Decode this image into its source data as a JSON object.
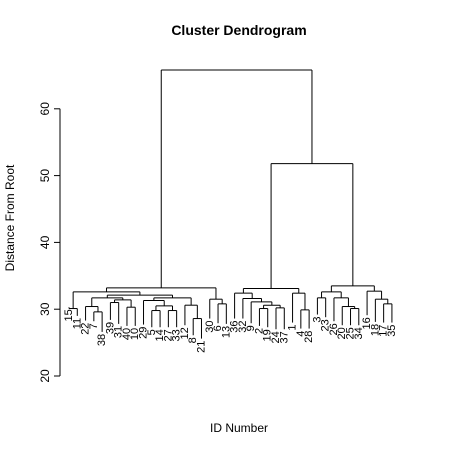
{
  "chart_data": {
    "type": "dendrogram",
    "title": "Cluster Dendrogram",
    "xlabel": "ID Number",
    "ylabel": "Distance From Root",
    "ylim": [
      20,
      68
    ],
    "yticks": [
      20,
      30,
      40,
      50,
      60
    ],
    "leaves": [
      {
        "label": "15",
        "height": 30.3
      },
      {
        "label": "11",
        "height": 29.0
      },
      {
        "label": "22",
        "height": 28.3
      },
      {
        "label": "7",
        "height": 28.2
      },
      {
        "label": "38",
        "height": 26.6
      },
      {
        "label": "39",
        "height": 28.4
      },
      {
        "label": "31",
        "height": 27.8
      },
      {
        "label": "40",
        "height": 27.5
      },
      {
        "label": "10",
        "height": 27.5
      },
      {
        "label": "29",
        "height": 27.7
      },
      {
        "label": "5",
        "height": 27.3
      },
      {
        "label": "14",
        "height": 27.3
      },
      {
        "label": "27",
        "height": 27.3
      },
      {
        "label": "33",
        "height": 27.3
      },
      {
        "label": "12",
        "height": 27.6
      },
      {
        "label": "8",
        "height": 26.1
      },
      {
        "label": "21",
        "height": 25.6
      },
      {
        "label": "30",
        "height": 28.6
      },
      {
        "label": "6",
        "height": 27.9
      },
      {
        "label": "13",
        "height": 27.8
      },
      {
        "label": "36",
        "height": 28.6
      },
      {
        "label": "32",
        "height": 28.6
      },
      {
        "label": "9",
        "height": 27.9
      },
      {
        "label": "2",
        "height": 27.5
      },
      {
        "label": "19",
        "height": 27.3
      },
      {
        "label": "24",
        "height": 27.0
      },
      {
        "label": "37",
        "height": 27.0
      },
      {
        "label": "1",
        "height": 28.0
      },
      {
        "label": "4",
        "height": 27.1
      },
      {
        "label": "28",
        "height": 27.1
      },
      {
        "label": "3",
        "height": 29.2
      },
      {
        "label": "23",
        "height": 28.8
      },
      {
        "label": "26",
        "height": 28.2
      },
      {
        "label": "20",
        "height": 27.6
      },
      {
        "label": "25",
        "height": 27.6
      },
      {
        "label": "34",
        "height": 27.6
      },
      {
        "label": "16",
        "height": 29.1
      },
      {
        "label": "18",
        "height": 28.1
      },
      {
        "label": "17",
        "height": 28.0
      },
      {
        "label": "35",
        "height": 28.0
      }
    ],
    "merges": [
      {
        "a": "L0",
        "b": "L1",
        "height": 30.1
      },
      {
        "a": "L3",
        "b": "L4",
        "height": 29.6
      },
      {
        "a": "L2",
        "b": "M1",
        "height": 30.4
      },
      {
        "a": "L5",
        "b": "L6",
        "height": 31.0
      },
      {
        "a": "L7",
        "b": "L8",
        "height": 30.3
      },
      {
        "a": "M3",
        "b": "M4",
        "height": 31.4
      },
      {
        "a": "M2",
        "b": "M5",
        "height": 31.7
      },
      {
        "a": "L10",
        "b": "L11",
        "height": 29.8
      },
      {
        "a": "L12",
        "b": "L13",
        "height": 29.8
      },
      {
        "a": "M7",
        "b": "M8",
        "height": 30.5
      },
      {
        "a": "L9",
        "b": "M9",
        "height": 31.3
      },
      {
        "a": "L15",
        "b": "L16",
        "height": 28.6
      },
      {
        "a": "L14",
        "b": "M11",
        "height": 30.6
      },
      {
        "a": "M10",
        "b": "M12",
        "height": 31.7
      },
      {
        "a": "M13",
        "b": "M6",
        "height": 32.1
      },
      {
        "a": "M0",
        "b": "M14",
        "height": 32.6
      },
      {
        "a": "L18",
        "b": "L19",
        "height": 30.8
      },
      {
        "a": "L17",
        "b": "M16",
        "height": 31.5
      },
      {
        "a": "M15",
        "b": "M17",
        "height": 33.2
      },
      {
        "a": "L23",
        "b": "L24",
        "height": 30.1
      },
      {
        "a": "L25",
        "b": "L26",
        "height": 30.2
      },
      {
        "a": "M19",
        "b": "M20",
        "height": 30.6
      },
      {
        "a": "L22",
        "b": "M21",
        "height": 31.1
      },
      {
        "a": "L21",
        "b": "M22",
        "height": 31.6
      },
      {
        "a": "L20",
        "b": "M23",
        "height": 32.4
      },
      {
        "a": "L28",
        "b": "L29",
        "height": 29.9
      },
      {
        "a": "L27",
        "b": "M25",
        "height": 32.4
      },
      {
        "a": "M24",
        "b": "M26",
        "height": 33.1
      },
      {
        "a": "L30",
        "b": "L31",
        "height": 31.7
      },
      {
        "a": "L34",
        "b": "L35",
        "height": 30.1
      },
      {
        "a": "L33",
        "b": "M29",
        "height": 30.4
      },
      {
        "a": "L32",
        "b": "M30",
        "height": 31.7
      },
      {
        "a": "M28",
        "b": "M31",
        "height": 32.6
      },
      {
        "a": "L38",
        "b": "L39",
        "height": 30.8
      },
      {
        "a": "L37",
        "b": "M33",
        "height": 31.5
      },
      {
        "a": "L36",
        "b": "M34",
        "height": 32.7
      },
      {
        "a": "M32",
        "b": "M35",
        "height": 33.5
      },
      {
        "a": "M27",
        "b": "M36",
        "height": 51.8
      },
      {
        "a": "M18",
        "b": "M37",
        "height": 65.8
      }
    ]
  }
}
